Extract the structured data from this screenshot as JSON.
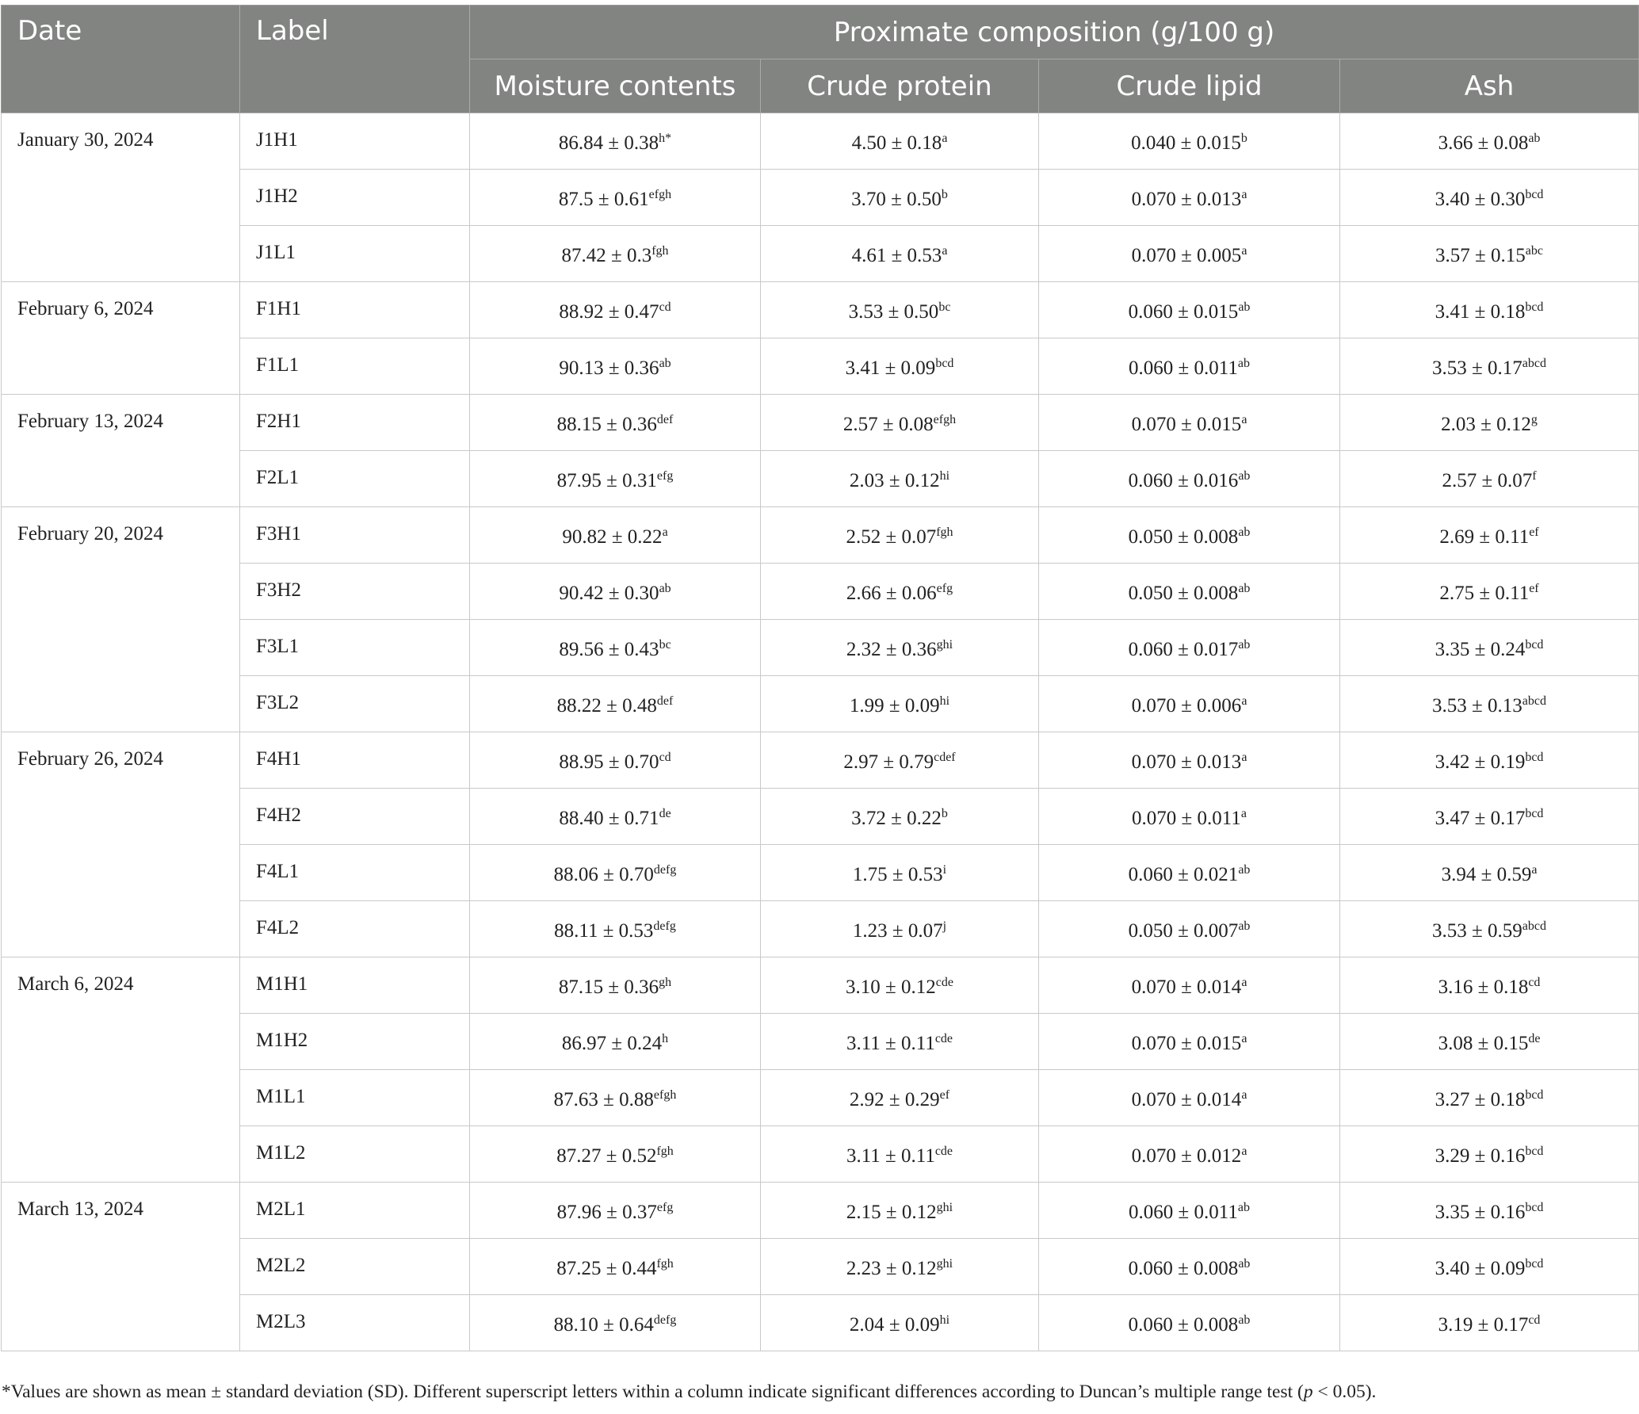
{
  "header": {
    "date": "Date",
    "label": "Label",
    "group": "Proximate composition (g/100 g)",
    "columns": [
      "Moisture contents",
      "Crude protein",
      "Crude lipid",
      "Ash"
    ]
  },
  "table": {
    "groups": [
      {
        "date": "January 30, 2024",
        "rows": [
          [
            "J1H1",
            [
              "86.84 ± 0.38",
              "h*"
            ],
            [
              "4.50 ± 0.18",
              "a"
            ],
            [
              "0.040 ± 0.015",
              "b"
            ],
            [
              "3.66 ± 0.08",
              "ab"
            ]
          ],
          [
            "J1H2",
            [
              "87.5 ± 0.61",
              "efgh"
            ],
            [
              "3.70 ± 0.50",
              "b"
            ],
            [
              "0.070 ± 0.013",
              "a"
            ],
            [
              "3.40 ± 0.30",
              "bcd"
            ]
          ],
          [
            "J1L1",
            [
              "87.42 ± 0.3",
              "fgh"
            ],
            [
              "4.61 ± 0.53",
              "a"
            ],
            [
              "0.070 ± 0.005",
              "a"
            ],
            [
              "3.57 ± 0.15",
              "abc"
            ]
          ]
        ]
      },
      {
        "date": "February 6, 2024",
        "rows": [
          [
            "F1H1",
            [
              "88.92 ± 0.47",
              "cd"
            ],
            [
              "3.53 ± 0.50",
              "bc"
            ],
            [
              "0.060 ± 0.015",
              "ab"
            ],
            [
              "3.41 ± 0.18",
              "bcd"
            ]
          ],
          [
            "F1L1",
            [
              "90.13 ± 0.36",
              "ab"
            ],
            [
              "3.41 ± 0.09",
              "bcd"
            ],
            [
              "0.060 ± 0.011",
              "ab"
            ],
            [
              "3.53 ± 0.17",
              "abcd"
            ]
          ]
        ]
      },
      {
        "date": "February 13, 2024",
        "rows": [
          [
            "F2H1",
            [
              "88.15 ± 0.36",
              "def"
            ],
            [
              "2.57 ± 0.08",
              "efgh"
            ],
            [
              "0.070 ± 0.015",
              "a"
            ],
            [
              "2.03 ± 0.12",
              "g"
            ]
          ],
          [
            "F2L1",
            [
              "87.95 ± 0.31",
              "efg"
            ],
            [
              "2.03 ± 0.12",
              "hi"
            ],
            [
              "0.060 ± 0.016",
              "ab"
            ],
            [
              "2.57 ± 0.07",
              "f"
            ]
          ]
        ]
      },
      {
        "date": "February 20, 2024",
        "rows": [
          [
            "F3H1",
            [
              "90.82 ± 0.22",
              "a"
            ],
            [
              "2.52 ± 0.07",
              "fgh"
            ],
            [
              "0.050 ± 0.008",
              "ab"
            ],
            [
              "2.69 ± 0.11",
              "ef"
            ]
          ],
          [
            "F3H2",
            [
              "90.42 ± 0.30",
              "ab"
            ],
            [
              "2.66 ± 0.06",
              "efg"
            ],
            [
              "0.050 ± 0.008",
              "ab"
            ],
            [
              "2.75 ± 0.11",
              "ef"
            ]
          ],
          [
            "F3L1",
            [
              "89.56 ± 0.43",
              "bc"
            ],
            [
              "2.32 ± 0.36",
              "ghi"
            ],
            [
              "0.060 ± 0.017",
              "ab"
            ],
            [
              "3.35 ± 0.24",
              "bcd"
            ]
          ],
          [
            "F3L2",
            [
              "88.22 ± 0.48",
              "def"
            ],
            [
              "1.99 ± 0.09",
              "hi"
            ],
            [
              "0.070 ± 0.006",
              "a"
            ],
            [
              "3.53 ± 0.13",
              "abcd"
            ]
          ]
        ]
      },
      {
        "date": "February 26, 2024",
        "rows": [
          [
            "F4H1",
            [
              "88.95 ± 0.70",
              "cd"
            ],
            [
              "2.97 ± 0.79",
              "cdef"
            ],
            [
              "0.070 ± 0.013",
              "a"
            ],
            [
              "3.42 ± 0.19",
              "bcd"
            ]
          ],
          [
            "F4H2",
            [
              "88.40 ± 0.71",
              "de"
            ],
            [
              "3.72 ± 0.22",
              "b"
            ],
            [
              "0.070 ± 0.011",
              "a"
            ],
            [
              "3.47 ± 0.17",
              "bcd"
            ]
          ],
          [
            "F4L1",
            [
              "88.06 ± 0.70",
              "defg"
            ],
            [
              "1.75 ± 0.53",
              "i"
            ],
            [
              "0.060 ± 0.021",
              "ab"
            ],
            [
              "3.94 ± 0.59",
              "a"
            ]
          ],
          [
            "F4L2",
            [
              "88.11 ± 0.53",
              "defg"
            ],
            [
              "1.23 ± 0.07",
              "j"
            ],
            [
              "0.050 ± 0.007",
              "ab"
            ],
            [
              "3.53 ± 0.59",
              "abcd"
            ]
          ]
        ]
      },
      {
        "date": "March 6, 2024",
        "rows": [
          [
            "M1H1",
            [
              "87.15 ± 0.36",
              "gh"
            ],
            [
              "3.10 ± 0.12",
              "cde"
            ],
            [
              "0.070 ± 0.014",
              "a"
            ],
            [
              "3.16 ± 0.18",
              "cd"
            ]
          ],
          [
            "M1H2",
            [
              "86.97 ± 0.24",
              "h"
            ],
            [
              "3.11 ± 0.11",
              "cde"
            ],
            [
              "0.070 ± 0.015",
              "a"
            ],
            [
              "3.08 ± 0.15",
              "de"
            ]
          ],
          [
            "M1L1",
            [
              "87.63 ± 0.88",
              "efgh"
            ],
            [
              "2.92 ± 0.29",
              "ef"
            ],
            [
              "0.070 ± 0.014",
              "a"
            ],
            [
              "3.27 ± 0.18",
              "bcd"
            ]
          ],
          [
            "M1L2",
            [
              "87.27 ± 0.52",
              "fgh"
            ],
            [
              "3.11 ± 0.11",
              "cde"
            ],
            [
              "0.070 ± 0.012",
              "a"
            ],
            [
              "3.29 ± 0.16",
              "bcd"
            ]
          ]
        ]
      },
      {
        "date": "March 13, 2024",
        "rows": [
          [
            "M2L1",
            [
              "87.96 ± 0.37",
              "efg"
            ],
            [
              "2.15 ± 0.12",
              "ghi"
            ],
            [
              "0.060 ± 0.011",
              "ab"
            ],
            [
              "3.35 ± 0.16",
              "bcd"
            ]
          ],
          [
            "M2L2",
            [
              "87.25 ± 0.44",
              "fgh"
            ],
            [
              "2.23 ± 0.12",
              "ghi"
            ],
            [
              "0.060 ± 0.008",
              "ab"
            ],
            [
              "3.40 ± 0.09",
              "bcd"
            ]
          ],
          [
            "M2L3",
            [
              "88.10 ± 0.64",
              "defg"
            ],
            [
              "2.04 ± 0.09",
              "hi"
            ],
            [
              "0.060 ± 0.008",
              "ab"
            ],
            [
              "3.19 ± 0.17",
              "cd"
            ]
          ]
        ]
      }
    ]
  },
  "footnote": {
    "before": "*Values are shown as mean ± standard deviation (SD). Different superscript letters within a column indicate significant differences according to Duncan’s multiple range test (",
    "p": "p",
    "after": " < 0.05)."
  }
}
